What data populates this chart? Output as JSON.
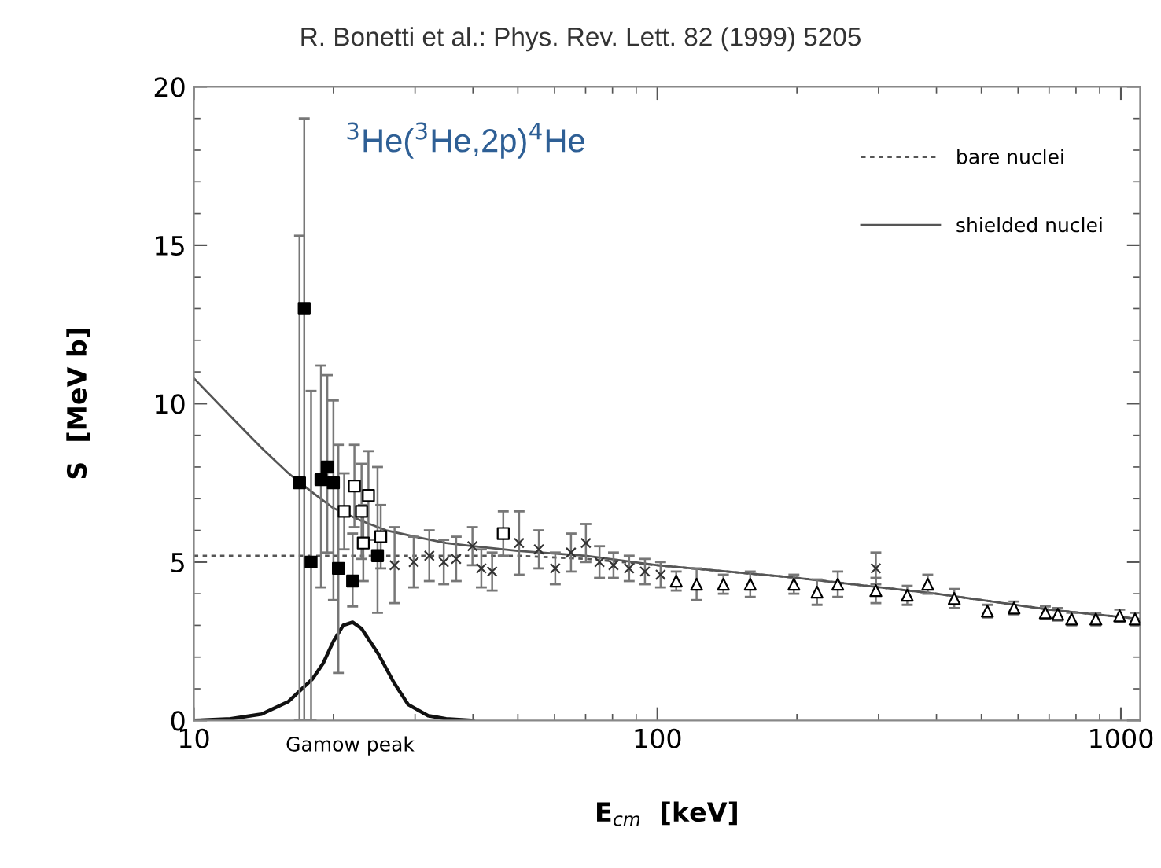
{
  "chart_data": {
    "type": "scatter",
    "title": "R. Bonetti et al.: Phys. Rev. Lett. 82 (1999) 5205",
    "xlabel": "E$_{cm}$  [keV]",
    "ylabel": "S  [MeV b]",
    "log": "x",
    "xlim": [
      10,
      1100
    ],
    "xticks": [
      10,
      100,
      1000
    ],
    "ylim": [
      0,
      20
    ],
    "yticks": [
      0,
      5,
      10,
      15,
      20
    ],
    "grid": false,
    "legend": "top right",
    "annotations": [
      "$^{3}$He($^{3}$He,2p)$^{4}$He",
      "Gamow peak"
    ],
    "series": [
      {
        "name": "bare nuclei",
        "type": "line",
        "line_style": "dashed",
        "marker": "none",
        "color": "#555555",
        "x": [
          10,
          30,
          50,
          70,
          100,
          200,
          400,
          700,
          1100
        ],
        "values": [
          5.2,
          5.2,
          5.2,
          5.1,
          4.9,
          4.5,
          4.0,
          3.5,
          3.2
        ]
      },
      {
        "name": "shielded nuclei",
        "type": "line",
        "line_style": "solid",
        "marker": "none",
        "color": "#555555",
        "x": [
          10,
          12,
          14,
          16,
          18,
          20,
          23,
          26,
          30,
          35,
          40,
          50,
          70,
          100,
          200,
          400,
          700,
          1100
        ],
        "values": [
          10.8,
          9.6,
          8.6,
          7.8,
          7.2,
          6.7,
          6.3,
          6.0,
          5.8,
          5.6,
          5.5,
          5.35,
          5.2,
          4.9,
          4.5,
          4.0,
          3.5,
          3.2
        ]
      },
      {
        "type": "line",
        "line_style": "solid",
        "marker": "none",
        "color": "#111111",
        "x": [
          10,
          12,
          14,
          16,
          18,
          19,
          20,
          21,
          22,
          23,
          25,
          27,
          29,
          32,
          35,
          40
        ],
        "values": [
          0,
          0.05,
          0.2,
          0.6,
          1.3,
          1.8,
          2.5,
          3.0,
          3.1,
          2.9,
          2.1,
          1.2,
          0.5,
          0.15,
          0.05,
          0
        ]
      },
      {
        "marker": "square",
        "color": "#000000",
        "x": [
          16.9,
          17.3,
          17.9,
          18.8,
          19.4,
          20.0,
          20.5,
          22.0,
          24.9
        ],
        "values": [
          7.5,
          13.0,
          5.0,
          7.6,
          8.0,
          7.5,
          4.8,
          4.4,
          5.2
        ],
        "errors": [
          [
            0,
            15.3
          ],
          [
            0,
            19.0
          ],
          [
            0,
            10.4
          ],
          [
            4.2,
            11.2
          ],
          [
            5.3,
            10.9
          ],
          [
            3.8,
            10.1
          ],
          [
            1.5,
            8.7
          ],
          [
            3.6,
            5.9
          ],
          [
            3.4,
            8.0
          ]
        ]
      },
      {
        "marker": "square",
        "color": "#ffffff",
        "x": [
          21.1,
          22.2,
          23.0,
          23.8,
          25.3,
          23.2,
          46.5
        ],
        "values": [
          6.6,
          7.4,
          6.6,
          7.1,
          5.8,
          5.6,
          5.9
        ],
        "errors": [
          1.2,
          1.3,
          1.5,
          1.4,
          1.0,
          1.2,
          0.7
        ]
      },
      {
        "marker": "cross",
        "color": "#333333",
        "x": [
          27.1,
          29.8,
          32.2,
          34.6,
          36.8,
          39.9,
          41.7,
          44.0,
          50.3,
          55.5,
          60.2,
          65.1,
          70.1,
          75.0,
          80.4,
          86.9,
          94,
          101.6,
          296
        ],
        "values": [
          4.9,
          5.0,
          5.2,
          5.0,
          5.1,
          5.5,
          4.8,
          4.7,
          5.6,
          5.4,
          4.8,
          5.3,
          5.6,
          5.0,
          4.9,
          4.8,
          4.7,
          4.6,
          4.8
        ],
        "errors": [
          1.2,
          0.8,
          0.8,
          0.7,
          0.7,
          0.6,
          0.6,
          0.6,
          1.0,
          0.6,
          0.5,
          0.6,
          0.6,
          0.5,
          0.4,
          0.4,
          0.4,
          0.4,
          0.5
        ]
      },
      {
        "marker": "triangle",
        "color": "#ffffff",
        "x": [
          109.8,
          121.5,
          138.8,
          158.6,
          197,
          221,
          245,
          296,
          346,
          383,
          437,
          515,
          588,
          687,
          731,
          783,
          883,
          994,
          1073
        ],
        "values": [
          4.4,
          4.3,
          4.3,
          4.3,
          4.3,
          4.05,
          4.3,
          4.1,
          3.95,
          4.3,
          3.85,
          3.45,
          3.55,
          3.4,
          3.35,
          3.2,
          3.2,
          3.3,
          3.2
        ],
        "errors": [
          0.3,
          0.5,
          0.3,
          0.4,
          0.3,
          0.4,
          0.4,
          0.4,
          0.3,
          0.3,
          0.3,
          0.2,
          0.2,
          0.2,
          0.2,
          0.2,
          0.2,
          0.2,
          0.2
        ]
      }
    ]
  }
}
